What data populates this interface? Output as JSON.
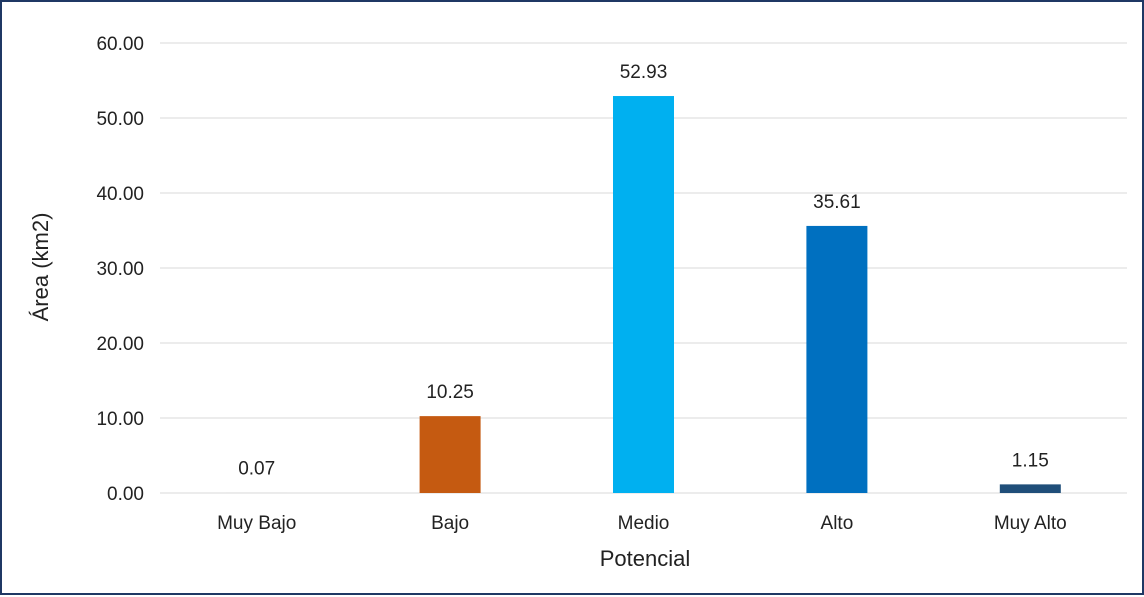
{
  "chart_data": {
    "type": "bar",
    "categories": [
      "Muy Bajo",
      "Bajo",
      "Medio",
      "Alto",
      "Muy Alto"
    ],
    "values": [
      0.07,
      10.25,
      52.93,
      35.61,
      1.15
    ],
    "value_labels": [
      "0.07",
      "10.25",
      "52.93",
      "35.61",
      "1.15"
    ],
    "colors": [
      "#d9d9d9",
      "#c55a11",
      "#00b0f0",
      "#0070c0",
      "#1f4e79"
    ],
    "title": "",
    "xlabel": "Potencial",
    "ylabel": "Área (km2)",
    "ylim": [
      0,
      60
    ],
    "yticks": [
      "0.00",
      "10.00",
      "20.00",
      "30.00",
      "40.00",
      "50.00",
      "60.00"
    ],
    "ytick_values": [
      0,
      10,
      20,
      30,
      40,
      50,
      60
    ],
    "grid": true,
    "legend": "none"
  },
  "frame": {
    "border_color": "#1f3864"
  }
}
